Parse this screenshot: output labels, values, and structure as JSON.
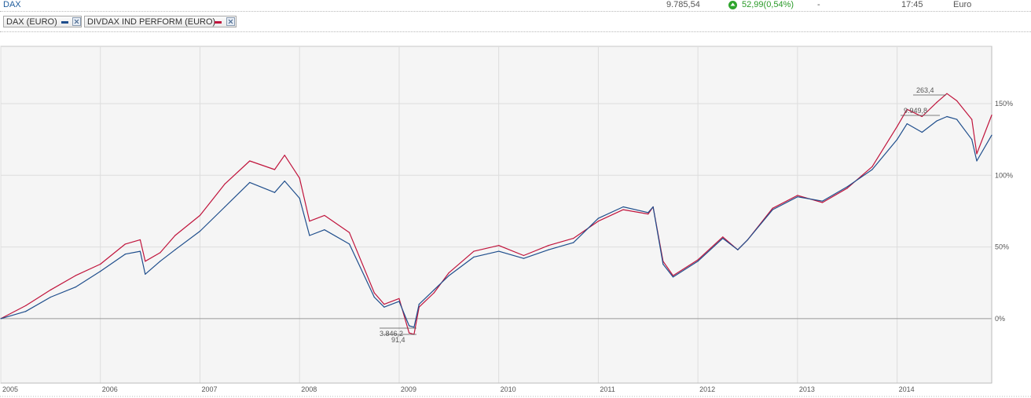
{
  "quote": {
    "name": "DAX",
    "price": "9.785,54",
    "change": "52,99(0,54%)",
    "dash": "-",
    "time": "17:45",
    "currency": "Euro"
  },
  "legend": [
    {
      "label": "DAX (EURO)",
      "color": "#1f4e8c"
    },
    {
      "label": "DIVDAX IND PERFORM (EURO)",
      "color": "#c0143c"
    }
  ],
  "colors": {
    "dax": "#1f4e8c",
    "divdax": "#c0143c",
    "grid": "#dddddd",
    "plot_bg": "#f5f5f5",
    "up": "#2fa52d"
  },
  "chart_data": {
    "type": "line",
    "x_ticks": [
      "2005",
      "2006",
      "2007",
      "2008",
      "2009",
      "2010",
      "2011",
      "2012",
      "2013",
      "2014"
    ],
    "y_ticks": [
      "150%",
      "100%",
      "50%",
      "0%"
    ],
    "y_tick_values": [
      150,
      100,
      50,
      0
    ],
    "ylim": [
      -45,
      190
    ],
    "xlim": [
      2005.0,
      2014.95
    ],
    "annotations": [
      {
        "text": "263,4",
        "series": "DIVDAX IND PERFORM (EURO)",
        "x": 2014.5,
        "y": 155
      },
      {
        "text": "9.949,8",
        "series": "DAX (EURO)",
        "x": 2014.3,
        "y": 141
      },
      {
        "text": "3.846,2",
        "series": "DAX (EURO)",
        "x": 2009.1,
        "y": -8
      },
      {
        "text": "91,4",
        "series": "DIVDAX IND PERFORM (EURO)",
        "x": 2009.15,
        "y": -11
      }
    ],
    "series": [
      {
        "name": "DAX (EURO)",
        "x": [
          2005.0,
          2005.25,
          2005.5,
          2005.75,
          2006.0,
          2006.25,
          2006.4,
          2006.45,
          2006.6,
          2006.75,
          2007.0,
          2007.25,
          2007.5,
          2007.75,
          2007.85,
          2008.0,
          2008.1,
          2008.25,
          2008.5,
          2008.75,
          2008.85,
          2009.0,
          2009.1,
          2009.15,
          2009.2,
          2009.35,
          2009.5,
          2009.75,
          2010.0,
          2010.25,
          2010.5,
          2010.75,
          2011.0,
          2011.25,
          2011.5,
          2011.55,
          2011.65,
          2011.75,
          2012.0,
          2012.25,
          2012.4,
          2012.5,
          2012.75,
          2013.0,
          2013.25,
          2013.5,
          2013.75,
          2014.0,
          2014.1,
          2014.25,
          2014.4,
          2014.5,
          2014.6,
          2014.75,
          2014.8,
          2014.95
        ],
        "y": [
          0,
          5,
          15,
          22,
          33,
          45,
          47,
          31,
          40,
          48,
          61,
          78,
          95,
          88,
          96,
          84,
          58,
          62,
          52,
          15,
          8,
          12,
          -5,
          -6,
          10,
          20,
          30,
          43,
          47,
          42,
          48,
          53,
          70,
          78,
          74,
          78,
          38,
          29,
          40,
          56,
          48,
          55,
          76,
          85,
          82,
          92,
          104,
          125,
          136,
          130,
          138,
          141,
          139,
          125,
          110,
          128
        ]
      },
      {
        "name": "DIVDAX IND PERFORM (EURO)",
        "x": [
          2005.0,
          2005.25,
          2005.5,
          2005.75,
          2006.0,
          2006.25,
          2006.4,
          2006.45,
          2006.6,
          2006.75,
          2007.0,
          2007.25,
          2007.5,
          2007.75,
          2007.85,
          2008.0,
          2008.1,
          2008.25,
          2008.5,
          2008.75,
          2008.85,
          2009.0,
          2009.1,
          2009.15,
          2009.2,
          2009.35,
          2009.5,
          2009.75,
          2010.0,
          2010.25,
          2010.5,
          2010.75,
          2011.0,
          2011.25,
          2011.5,
          2011.55,
          2011.65,
          2011.75,
          2012.0,
          2012.25,
          2012.4,
          2012.5,
          2012.75,
          2013.0,
          2013.25,
          2013.5,
          2013.75,
          2014.0,
          2014.1,
          2014.25,
          2014.4,
          2014.5,
          2014.6,
          2014.75,
          2014.8,
          2014.95
        ],
        "y": [
          0,
          9,
          20,
          30,
          38,
          52,
          55,
          40,
          46,
          58,
          72,
          94,
          110,
          104,
          114,
          98,
          68,
          72,
          60,
          18,
          10,
          14,
          -10,
          -11,
          8,
          18,
          32,
          47,
          51,
          44,
          51,
          56,
          68,
          76,
          73,
          78,
          40,
          30,
          41,
          57,
          48,
          55,
          77,
          86,
          81,
          91,
          106,
          134,
          146,
          141,
          151,
          157,
          152,
          139,
          115,
          142
        ]
      }
    ]
  }
}
